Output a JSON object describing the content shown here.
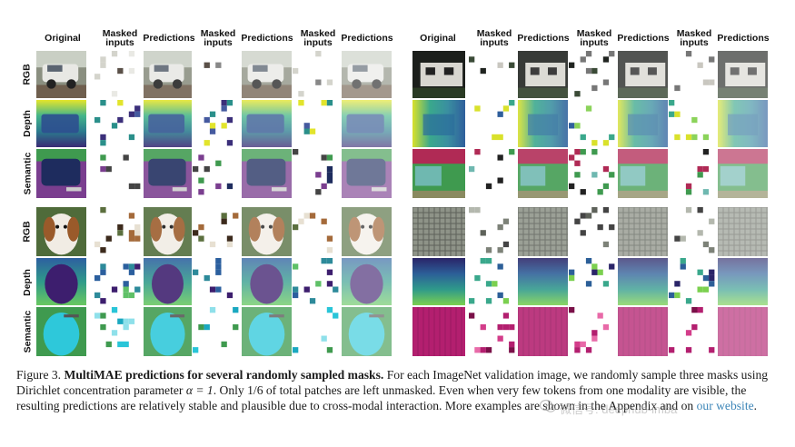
{
  "columns": [
    "Original",
    "Masked\ninputs",
    "Predictions",
    "Masked\ninputs",
    "Predictions",
    "Masked\ninputs",
    "Predictions"
  ],
  "row_labels": [
    "RGB",
    "Depth",
    "Semantic"
  ],
  "caption": {
    "figure_label": "Figure 3.",
    "bold_title": "MultiMAE predictions for several randomly sampled masks.",
    "text_1": " For each ImageNet validation image, we randomly sample three masks using Dirichlet concentration parameter ",
    "alpha_expr": "α = 1",
    "text_2": ". Only 1/6 of total patches are left unmasked. Even when very few tokens from one modality are visible, the resulting predictions are relatively stable and plausible due to cross-modal interaction. More examples are shown in the Appendix and on ",
    "link_text": "our website",
    "text_3": "."
  },
  "watermark": "微信号: deephub-imba",
  "colors": {
    "link": "#3d86b8",
    "depth_purple": "#3b1f6e",
    "depth_teal": "#23958a",
    "depth_yellow": "#e3e62c",
    "semantic_purple": "#7a3e8f",
    "semantic_navy": "#1e2c5e",
    "semantic_green": "#3f9a4f",
    "cyan": "#29c5d8",
    "magenta": "#b31f6f"
  }
}
